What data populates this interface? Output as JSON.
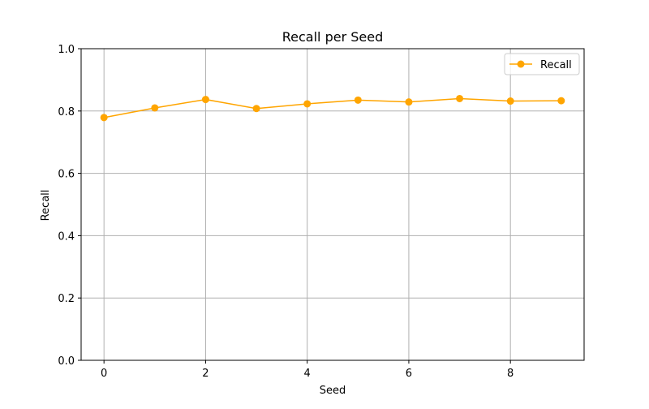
{
  "chart_data": {
    "type": "line",
    "title": "Recall per Seed",
    "xlabel": "Seed",
    "ylabel": "Recall",
    "xlim": [
      -0.45,
      9.45
    ],
    "ylim": [
      0.0,
      1.0
    ],
    "xticks": [
      0,
      2,
      4,
      6,
      8
    ],
    "yticks": [
      0.0,
      0.2,
      0.4,
      0.6,
      0.8,
      1.0
    ],
    "xtick_labels": [
      "0",
      "2",
      "4",
      "6",
      "8"
    ],
    "ytick_labels": [
      "0.0",
      "0.2",
      "0.4",
      "0.6",
      "0.8",
      "1.0"
    ],
    "grid": true,
    "legend_position": "top-right",
    "x": [
      0,
      1,
      2,
      3,
      4,
      5,
      6,
      7,
      8,
      9
    ],
    "series": [
      {
        "name": "Recall",
        "color": "#ffa500",
        "marker": "circle",
        "values": [
          0.779,
          0.81,
          0.837,
          0.808,
          0.823,
          0.835,
          0.829,
          0.84,
          0.832,
          0.833
        ]
      }
    ]
  },
  "colors": {
    "series": "#ffa500",
    "grid": "#b0b0b0",
    "axis": "#000000",
    "background": "#ffffff"
  }
}
